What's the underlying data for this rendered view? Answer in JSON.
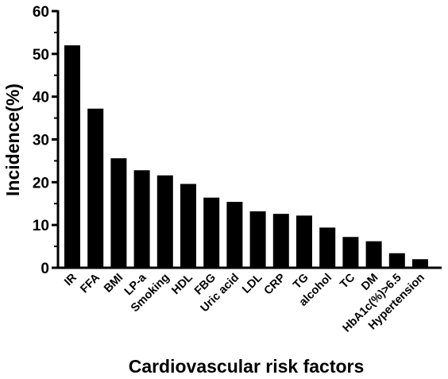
{
  "chart_data": {
    "type": "bar",
    "title": "",
    "xlabel": "Cardiovascular risk factors",
    "ylabel": "Incidence(%)",
    "ylim": [
      0,
      60
    ],
    "yticks": [
      "0",
      "10",
      "20",
      "30",
      "40",
      "50",
      "60"
    ],
    "grid": false,
    "bar_color": "#000000",
    "categories": [
      "IR",
      "FFA",
      "BMI",
      "LP-a",
      "Smoking",
      "HDL",
      "FBG",
      "Uric acid",
      "LDL",
      "CRP",
      "TG",
      "alcohol",
      "TC",
      "DM",
      "HbA1c(%)>6.5",
      "Hypertension"
    ],
    "values": [
      52,
      37.2,
      25.6,
      22.8,
      21.6,
      19.6,
      16.4,
      15.4,
      13.2,
      12.6,
      12.2,
      9.4,
      7.2,
      6.2,
      3.4,
      2
    ]
  }
}
